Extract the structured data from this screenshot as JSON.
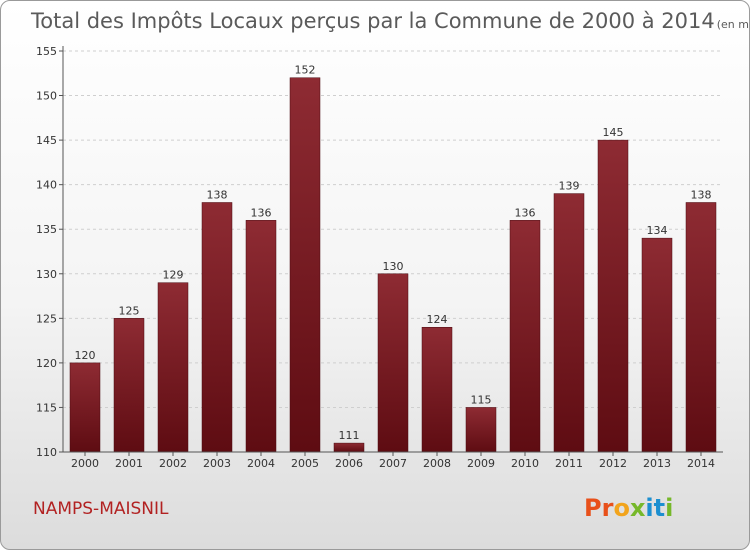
{
  "chart_data": {
    "type": "bar",
    "title": "Total des Impôts Locaux perçus par la Commune de 2000 à 2014",
    "unit": "(en milliers d'€)",
    "xlabel": "",
    "ylabel": "",
    "categories": [
      "2000",
      "2001",
      "2002",
      "2003",
      "2004",
      "2005",
      "2006",
      "2007",
      "2008",
      "2009",
      "2010",
      "2011",
      "2012",
      "2013",
      "2014"
    ],
    "values": [
      120,
      125,
      129,
      138,
      136,
      152,
      111,
      130,
      124,
      115,
      136,
      139,
      145,
      134,
      138
    ],
    "ylim": [
      110,
      155
    ],
    "yticks": [
      110,
      115,
      120,
      125,
      130,
      135,
      140,
      145,
      150,
      155
    ],
    "grid": true,
    "bar_color": "#7a1c24"
  },
  "commune": "NAMPS-MAISNIL",
  "brand": {
    "letters": [
      "P",
      "r",
      "o",
      "x",
      "i",
      "t",
      "i"
    ],
    "colors": [
      "#e8501a",
      "#e8501a",
      "#f2a41c",
      "#76b82a",
      "#1c8fd0",
      "#1c8fd0",
      "#76b82a"
    ]
  }
}
